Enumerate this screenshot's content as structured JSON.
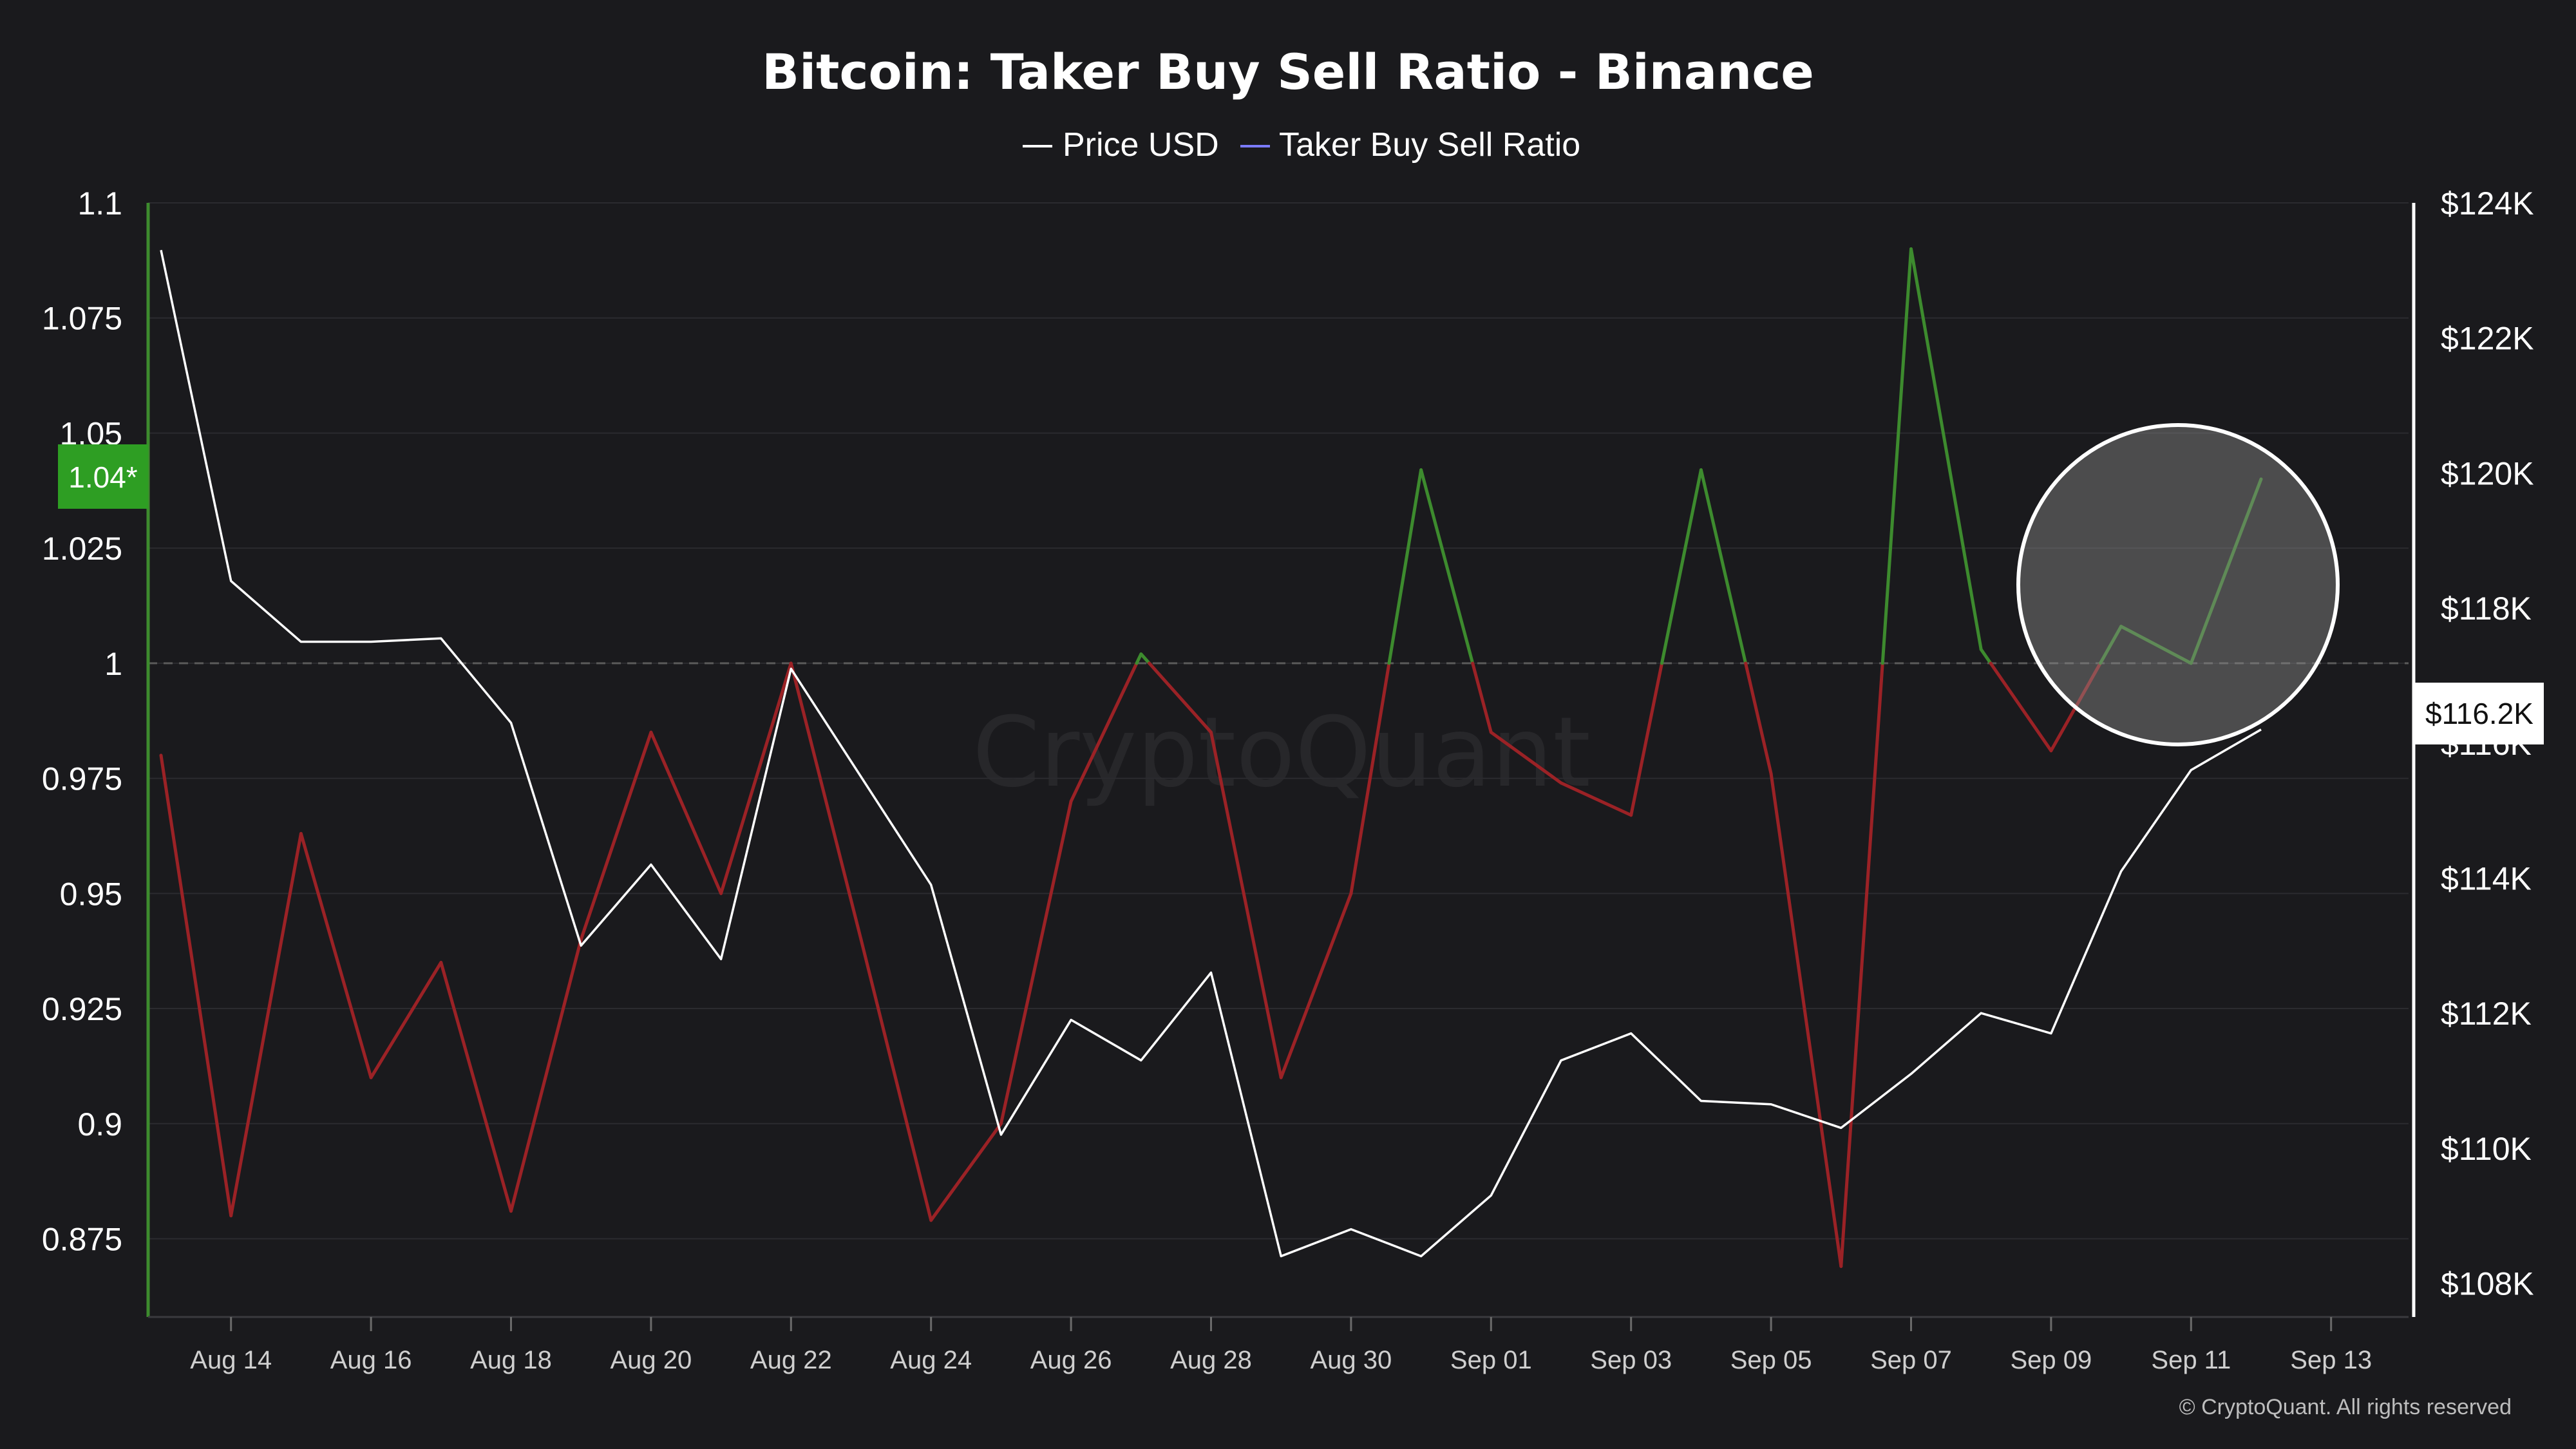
{
  "chart_data": {
    "type": "line",
    "title": "Bitcoin: Taker Buy Sell Ratio - Binance",
    "x": [
      "Aug 13",
      "Aug 14",
      "Aug 15",
      "Aug 16",
      "Aug 17",
      "Aug 18",
      "Aug 19",
      "Aug 20",
      "Aug 21",
      "Aug 22",
      "Aug 23",
      "Aug 24",
      "Aug 25",
      "Aug 26",
      "Aug 27",
      "Aug 28",
      "Aug 29",
      "Aug 30",
      "Aug 31",
      "Sep 01",
      "Sep 02",
      "Sep 03",
      "Sep 04",
      "Sep 05",
      "Sep 06",
      "Sep 07",
      "Sep 08",
      "Sep 09",
      "Sep 10",
      "Sep 11",
      "Sep 12"
    ],
    "x_ticks": [
      "Aug 14",
      "Aug 16",
      "Aug 18",
      "Aug 20",
      "Aug 22",
      "Aug 24",
      "Aug 26",
      "Aug 28",
      "Aug 30",
      "Sep 01",
      "Sep 03",
      "Sep 05",
      "Sep 07",
      "Sep 09",
      "Sep 11",
      "Sep 13"
    ],
    "series": [
      {
        "name": "Price USD",
        "axis": "right",
        "color": "#ffffff",
        "values": [
          123300,
          118400,
          117500,
          117500,
          117550,
          116300,
          113000,
          114200,
          112800,
          117100,
          115500,
          113900,
          110200,
          111900,
          111300,
          112600,
          108400,
          108800,
          108400,
          109300,
          111300,
          111700,
          110700,
          110650,
          110300,
          111100,
          112000,
          111700,
          114100,
          115600,
          116200
        ]
      },
      {
        "name": "Taker Buy Sell Ratio",
        "axis": "left",
        "color": "#7b7bff",
        "above_color": "#3d8b2e",
        "below_color": "#9b2226",
        "values": [
          0.98,
          0.88,
          0.963,
          0.91,
          0.935,
          0.881,
          0.94,
          0.985,
          0.95,
          1.0,
          0.94,
          0.879,
          0.9,
          0.97,
          1.002,
          0.985,
          0.91,
          0.95,
          1.042,
          0.985,
          0.974,
          0.967,
          1.042,
          0.976,
          0.869,
          1.09,
          1.003,
          0.981,
          1.008,
          1.0,
          1.04
        ]
      }
    ],
    "left_axis": {
      "ticks": [
        "0.875",
        "0.9",
        "0.925",
        "0.95",
        "0.975",
        "1",
        "1.025",
        "1.05",
        "1.075",
        "1.1"
      ],
      "ylim": [
        0.858,
        1.1
      ]
    },
    "right_axis": {
      "ticks": [
        "$108K",
        "$110K",
        "$112K",
        "$114K",
        "$116K",
        "$118K",
        "$120K",
        "$122K",
        "$124K"
      ],
      "ylim": [
        107500,
        124000
      ]
    },
    "reference_line": 1,
    "current_ratio_label": "1.04*",
    "current_price_label": "$116.2K",
    "watermark": "CryptoQuant",
    "copyright": "© CryptoQuant. All rights reserved",
    "grid": true,
    "legend_position": "top-center"
  },
  "colors": {
    "background": "#1a1a1d",
    "grid": "#2b2b2f",
    "price": "#ffffff",
    "ratio_up": "#3d8b2e",
    "ratio_down": "#9b2226",
    "badge": "#2e9e23"
  }
}
